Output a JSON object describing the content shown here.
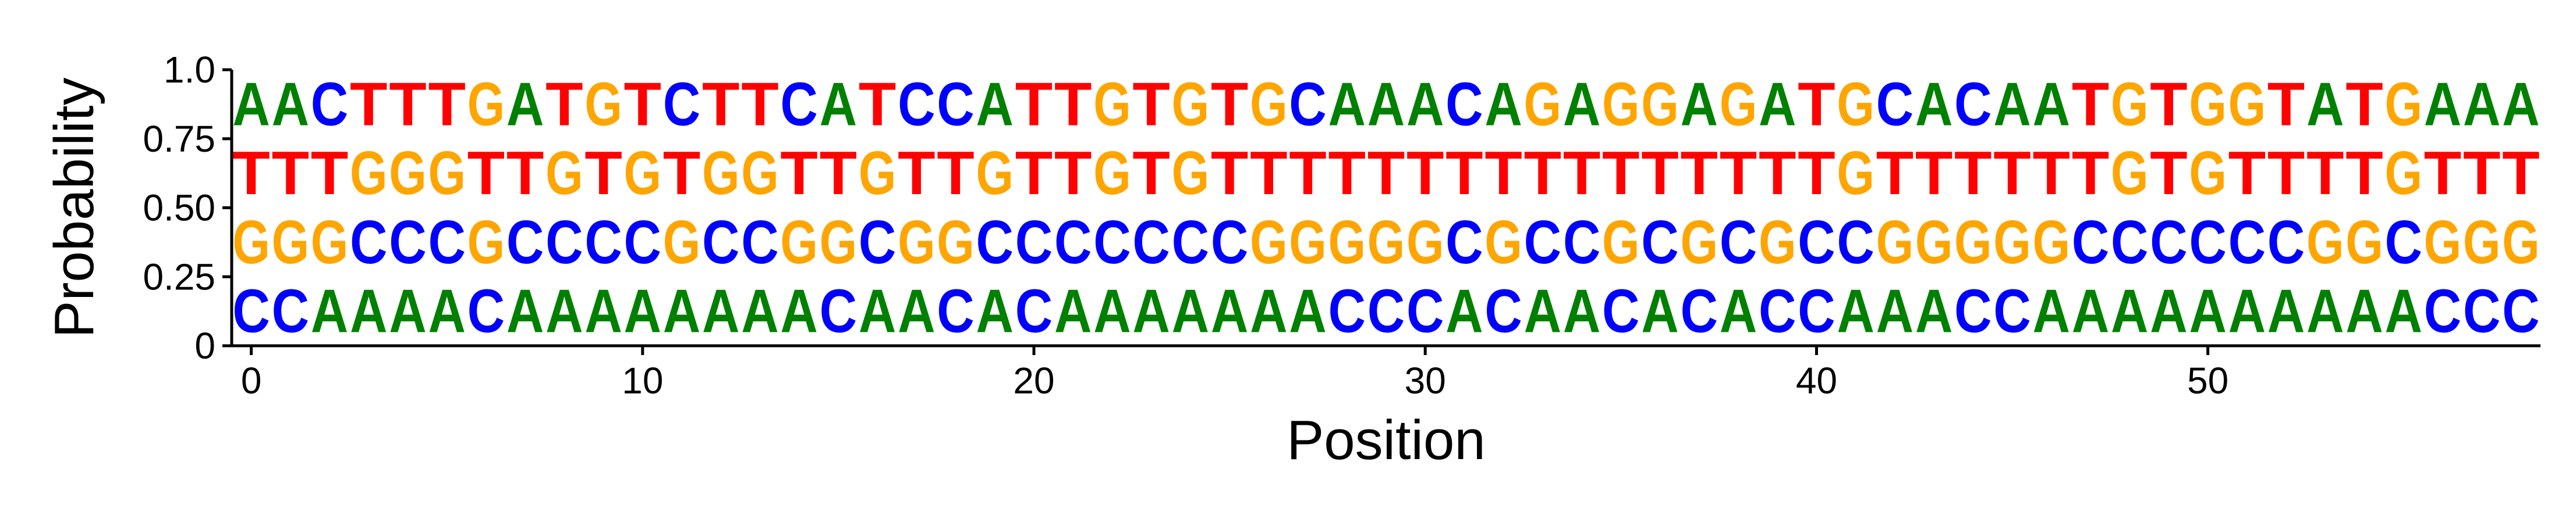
{
  "chart_data": {
    "type": "sequence-logo",
    "xlabel": "Position",
    "ylabel": "Probability",
    "xlim": [
      -0.5,
      58.5
    ],
    "ylim": [
      0,
      1
    ],
    "x_ticks": [
      0,
      10,
      20,
      30,
      40,
      50
    ],
    "y_ticks": [
      {
        "value": 0,
        "label": "0"
      },
      {
        "value": 0.25,
        "label": "0.25"
      },
      {
        "value": 0.5,
        "label": "0.50"
      },
      {
        "value": 0.75,
        "label": "0.75"
      },
      {
        "value": 1.0,
        "label": "1.0"
      }
    ],
    "colors": {
      "A": "#008000",
      "C": "#0000ff",
      "G": "#ffa500",
      "T": "#ff0000"
    },
    "grid": false,
    "columns": [
      "CGTA",
      "CGTA",
      "AGTC",
      "ACGT",
      "ACGT",
      "ACGT",
      "CGTG",
      "ACTA",
      "ACGT",
      "ACTG",
      "ACGT",
      "AGTC",
      "ACGT",
      "ACGT",
      "AGTC",
      "CGTA",
      "ACGT",
      "AGTC",
      "CGTC",
      "ACGA",
      "CCTT",
      "ACTT",
      "ACGG",
      "ACTT",
      "ACGG",
      "ACTT",
      "AGTG",
      "AGTC",
      "CGTA",
      "CGTA",
      "CGTA",
      "ACTC",
      "CGTA",
      "ACTG",
      "ACTA",
      "CGTG",
      "ACTG",
      "CGTA",
      "ACTG",
      "CGTA",
      "CCTT",
      "ACGG",
      "AGTC",
      "AGTA",
      "CGTC",
      "CGTA",
      "AGTA",
      "ACTT",
      "ACGG",
      "ACTT",
      "ACGG",
      "ACTG",
      "ACTT",
      "AGTA",
      "AGTT",
      "ACGG",
      "CGTA",
      "CGTA",
      "CGTA"
    ]
  }
}
